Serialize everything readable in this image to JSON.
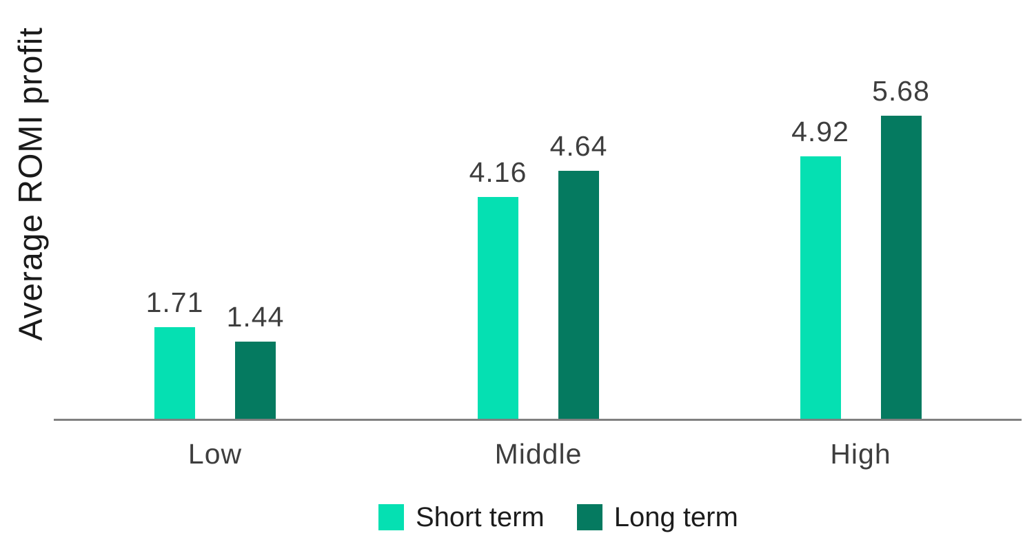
{
  "chart_data": {
    "type": "bar",
    "title": "",
    "xlabel": "",
    "ylabel": "Average ROMI profit",
    "categories": [
      "Low",
      "Middle",
      "High"
    ],
    "series": [
      {
        "name": "Short term",
        "color": "#05E0B2",
        "values": [
          1.71,
          4.16,
          4.92
        ]
      },
      {
        "name": "Long term",
        "color": "#057A60",
        "values": [
          1.44,
          4.64,
          5.68
        ]
      }
    ],
    "value_label_format": "two_decimals",
    "ylim": [
      0,
      6.5
    ],
    "grid": false,
    "legend_position": "bottom",
    "axis_line_color": "#808080",
    "label_color": "#3e3e3e",
    "text_color": "#1a1a1a",
    "legend_text_color": "#1c1c1c",
    "background_color": "#ffffff"
  }
}
